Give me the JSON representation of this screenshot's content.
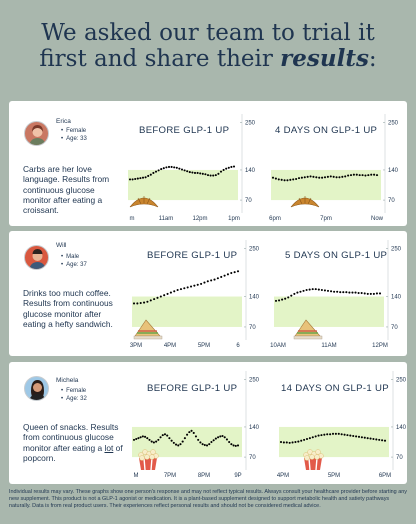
{
  "headline": {
    "line1": "We asked our team to trial it",
    "line2_prefix": "first and share their ",
    "line2_emph": "results",
    "line2_suffix": ":"
  },
  "colors": {
    "band": "#e3f4c7",
    "text": "#1f3550",
    "dots": "#000000"
  },
  "people": [
    {
      "name": "Erica",
      "gender": "Female",
      "age": "Age: 33",
      "description_html": "Carbs are her love language. Results from continuous glucose monitor after eating a croissant.",
      "food_icon": "croissant-icon",
      "before": {
        "title": "BEFORE GLP-1 UP",
        "x_ticks": [
          "m",
          "11am",
          "12pm",
          "1pm"
        ],
        "y_ticks": [
          "250",
          "140",
          "70"
        ],
        "series": [
          118,
          118,
          119,
          120,
          121,
          122,
          123,
          126,
          129,
          133,
          136,
          139,
          142,
          144,
          146,
          147,
          147,
          146,
          145,
          143,
          141,
          139,
          137,
          135,
          134,
          133,
          133,
          132,
          131,
          130,
          128,
          127,
          127,
          128,
          131,
          136,
          140,
          143,
          145,
          147,
          148
        ]
      },
      "after": {
        "title": "4 DAYS ON GLP-1 UP",
        "x_ticks": [
          "6pm",
          "7pm",
          "Now"
        ],
        "y_ticks": [
          "250",
          "140",
          "70"
        ],
        "series": [
          122,
          120,
          118,
          117,
          116,
          116,
          117,
          118,
          119,
          121,
          122,
          123,
          124,
          125,
          124,
          123,
          122,
          122,
          123,
          124,
          125,
          124,
          123,
          123,
          124,
          125,
          127,
          128,
          129,
          129,
          128,
          128,
          127,
          128,
          129,
          129,
          128
        ]
      }
    },
    {
      "name": "Will",
      "gender": "Male",
      "age": "Age: 37",
      "description_html": "Drinks too much coffee. Results from continuous glucose monitor after eating a hefty sandwich.",
      "food_icon": "sandwich-icon",
      "before": {
        "title": "BEFORE GLP-1 UP",
        "x_ticks": [
          "3PM",
          "4PM",
          "5PM",
          "6"
        ],
        "y_ticks": [
          "250",
          "140",
          "70"
        ],
        "series": [
          124,
          124,
          125,
          126,
          128,
          131,
          134,
          137,
          140,
          143,
          146,
          149,
          152,
          155,
          157,
          159,
          161,
          163,
          165,
          167,
          169,
          172,
          175,
          177,
          179,
          182,
          185,
          188,
          191,
          194,
          196,
          198
        ]
      },
      "after": {
        "title": "5 DAYS ON GLP-1 UP",
        "x_ticks": [
          "10AM",
          "11AM",
          "12PM"
        ],
        "y_ticks": [
          "250",
          "140",
          "70"
        ],
        "series": [
          130,
          131,
          133,
          135,
          138,
          142,
          146,
          149,
          151,
          153,
          155,
          156,
          157,
          157,
          156,
          155,
          154,
          153,
          152,
          151,
          151,
          150,
          150,
          150,
          149,
          149,
          149,
          148,
          148,
          147,
          146,
          146,
          146,
          147,
          147
        ]
      }
    },
    {
      "name": "Michela",
      "gender": "Female",
      "age": "Age: 32",
      "description_html": "Queen of snacks. Results from continuous glucose monitor after eating a <u>lot</u> of popcorn.",
      "food_icon": "popcorn-icon",
      "before": {
        "title": "BEFORE GLP-1 UP",
        "x_ticks": [
          "M",
          "7PM",
          "8PM",
          "9P"
        ],
        "y_ticks": [
          "250",
          "140",
          "70"
        ],
        "series": [
          110,
          112,
          114,
          116,
          118,
          117,
          114,
          110,
          106,
          104,
          106,
          110,
          116,
          121,
          123,
          120,
          114,
          108,
          103,
          99,
          97,
          100,
          106,
          114,
          122,
          128,
          131,
          126,
          118,
          110,
          104,
          100,
          98,
          97,
          100,
          105,
          109,
          113,
          116,
          118,
          119,
          116,
          111,
          105,
          100,
          97,
          96,
          97
        ]
      },
      "after": {
        "title": "14 DAYS ON GLP-1 UP",
        "x_ticks": [
          "4PM",
          "5PM",
          "6PM"
        ],
        "y_ticks": [
          "250",
          "140",
          "70"
        ],
        "series": [
          105,
          104,
          104,
          103,
          104,
          105,
          106,
          108,
          110,
          112,
          114,
          116,
          118,
          120,
          121,
          122,
          123,
          123,
          124,
          124,
          124,
          123,
          122,
          121,
          120,
          119,
          118,
          117,
          116,
          115,
          114,
          113,
          112,
          111,
          110,
          109,
          108
        ]
      }
    }
  ],
  "disclaimer": "Individual results may vary. These graphs show one person's response and may not reflect typical results. Always consult your healthcare provider before starting any new supplement. This product is not a GLP-1 agonist or medication. It is a plant-based supplement designed to support metabolic health and satiety pathways naturally. Data is from real product users. Their experiences reflect personal results and should not be considered medical advice."
}
